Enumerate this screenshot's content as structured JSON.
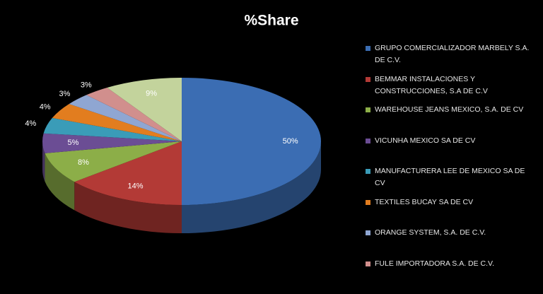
{
  "chart_data": {
    "type": "pie3d",
    "title": "%Share",
    "categories": [
      "GRUPO COMERCIALIZADOR MARBELY S.A. DE C.V.",
      "BEMMAR INSTALACIONES Y CONSTRUCCIONES,  S.A DE C.V",
      "WAREHOUSE JEANS MEXICO, S.A. DE CV",
      "VICUNHA MEXICO SA DE CV",
      "MANUFACTURERA  LEE DE MEXICO SA DE CV",
      "TEXTILES BUCAY SA DE CV",
      "ORANGE SYSTEM,  S.A. DE C.V.",
      "FULE IMPORTADORA S.A. DE C.V.",
      null
    ],
    "values": [
      50,
      14,
      8,
      5,
      4,
      4,
      3,
      3,
      9
    ],
    "value_labels": [
      "50%",
      "14%",
      "8%",
      "5%",
      "4%",
      "4%",
      "3%",
      "3%",
      "9%"
    ],
    "colors": [
      "#3b6db3",
      "#b33a36",
      "#8cae48",
      "#6b4d94",
      "#3a9cb8",
      "#e27d1f",
      "#8fa6d2",
      "#d18f8d",
      "#c3d39c"
    ],
    "legend": "right"
  }
}
